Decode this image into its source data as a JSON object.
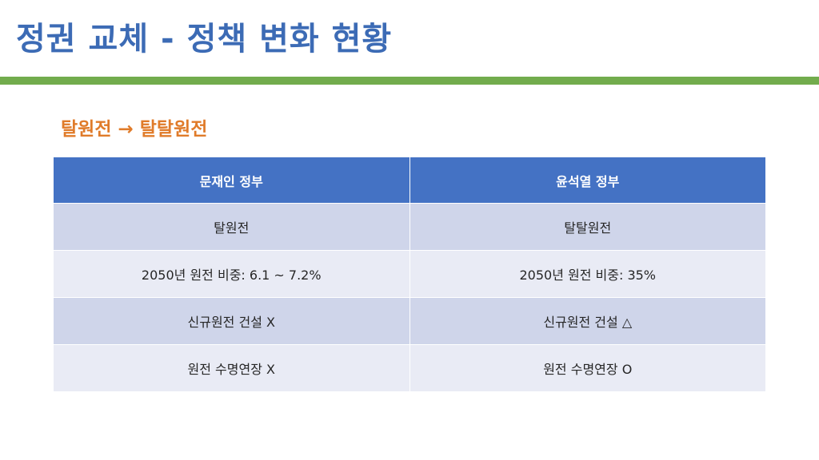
{
  "slide": {
    "title": "정권 교체 - 정책 변화 현황",
    "subtitle": "탈원전 → 탈탈원전"
  },
  "table": {
    "headers": [
      "문재인 정부",
      "윤석열 정부"
    ],
    "rows": [
      [
        "탈원전",
        "탈탈원전"
      ],
      [
        "2050년 원전 비중: 6.1 ~ 7.2%",
        "2050년 원전 비중: 35%"
      ],
      [
        "신규원전 건설 X",
        "신규원전 건설 △"
      ],
      [
        "원전 수명연장 X",
        "원전 수명연장 O"
      ]
    ]
  },
  "colors": {
    "title": "#3c6bb5",
    "rule": "#72ac4d",
    "subtitle": "#e07b2a",
    "header_bg": "#4472c4",
    "row_odd_bg": "#cfd5ea",
    "row_even_bg": "#e9ebf5"
  }
}
